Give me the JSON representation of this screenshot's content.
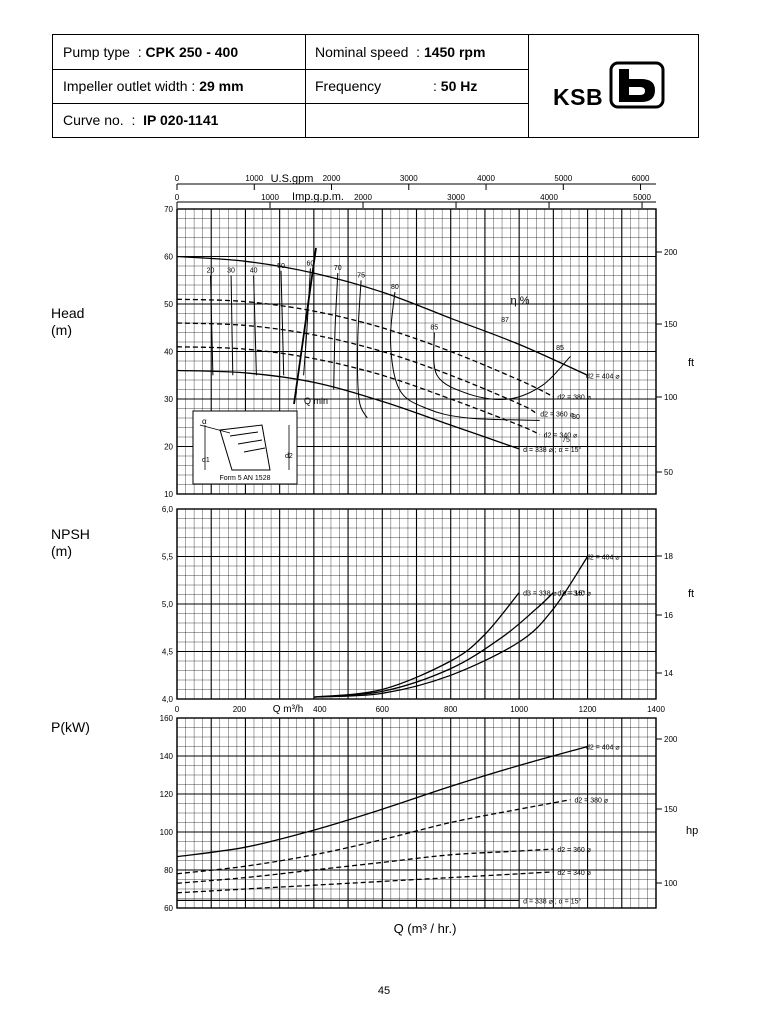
{
  "header": {
    "pump_type_label": "Pump type",
    "pump_type_value": "CPK 250 - 400",
    "impeller_label": "Impeller outlet width",
    "impeller_value": "29 mm",
    "curve_label": "Curve no.",
    "curve_value": "IP 020-1141",
    "speed_label": "Nominal speed",
    "speed_value": "1450 rpm",
    "frequency_label": "Frequency",
    "frequency_value": "50 Hz",
    "logo_text": "KSB"
  },
  "labels": {
    "head": "Head",
    "head_unit": "(m)",
    "npsh": "NPSH",
    "npsh_unit": "(m)",
    "power": "P(kW)",
    "ft1": "ft",
    "ft2": "ft",
    "hp": "hp",
    "x_axis": "Q (m³ / hr.)"
  },
  "page_number": "45",
  "chart_data": [
    {
      "type": "line",
      "xlabel": "Q m³/h",
      "ylabel": "Head (m)",
      "xlim": [
        0,
        1400
      ],
      "ylim": [
        10,
        70
      ],
      "y_ticks": [
        10,
        20,
        30,
        40,
        50,
        60,
        70
      ],
      "right_axis": {
        "unit": "ft",
        "ticks": [
          50,
          100,
          150,
          200
        ]
      },
      "top_axes": [
        {
          "label": "U.S.gpm",
          "ticks": [
            0,
            1000,
            2000,
            3000,
            4000,
            5000,
            6000
          ]
        },
        {
          "label": "Imp.g.p.m.",
          "ticks": [
            0,
            1000,
            2000,
            3000,
            4000,
            5000
          ]
        }
      ],
      "grid": true,
      "efficiency_label": "η %",
      "qmin_label": "Q min",
      "series": [
        {
          "name": "d2 = 404 ⌀",
          "style": "solid",
          "x": [
            0,
            200,
            400,
            600,
            800,
            1000,
            1200
          ],
          "y": [
            60,
            59,
            56.5,
            52.5,
            47,
            41.5,
            35
          ]
        },
        {
          "name": "d2 = 380 ⌀",
          "style": "dashed",
          "x": [
            0,
            200,
            400,
            600,
            800,
            1000,
            1100
          ],
          "y": [
            51,
            50.5,
            48.5,
            45,
            40,
            34,
            30.5
          ]
        },
        {
          "name": "d2 = 360 ⌀",
          "style": "dashed",
          "x": [
            0,
            200,
            400,
            600,
            800,
            1000,
            1050
          ],
          "y": [
            46,
            45.5,
            43.5,
            40,
            35,
            29,
            27
          ]
        },
        {
          "name": "d2 = 340 ⌀",
          "style": "dashed",
          "x": [
            0,
            200,
            400,
            600,
            800,
            1000,
            1060
          ],
          "y": [
            41,
            40.5,
            38.5,
            35,
            30,
            24.5,
            22.5
          ]
        },
        {
          "name": "d = 338 ⌀ ; α = 15°",
          "style": "solid",
          "x": [
            0,
            200,
            400,
            600,
            800,
            1000
          ],
          "y": [
            36,
            35.5,
            33.5,
            29.5,
            24.5,
            19.5
          ]
        }
      ],
      "efficiency_curves": [
        {
          "label": "20",
          "x": [
            98,
            105
          ],
          "y": [
            56,
            35
          ]
        },
        {
          "label": "30",
          "x": [
            158,
            163
          ],
          "y": [
            56,
            35
          ]
        },
        {
          "label": "40",
          "x": [
            224,
            232
          ],
          "y": [
            56,
            35
          ]
        },
        {
          "label": "50",
          "x": [
            304,
            312
          ],
          "y": [
            57,
            35
          ]
        },
        {
          "label": "60",
          "x": [
            390,
            380,
            370
          ],
          "y": [
            57.5,
            45,
            35
          ]
        },
        {
          "label": "70",
          "x": [
            470,
            462,
            458
          ],
          "y": [
            56.5,
            45,
            32
          ]
        },
        {
          "label": "75",
          "x": [
            538,
            528,
            532,
            556
          ],
          "y": [
            55,
            42,
            30,
            26
          ]
        },
        {
          "label": "80",
          "x": [
            637,
            624,
            650,
            730,
            850,
            1060
          ],
          "y": [
            52.5,
            42,
            32,
            28,
            26,
            25.5
          ]
        },
        {
          "label": "85",
          "x": [
            752,
            760,
            855,
            970,
            1070,
            1150
          ],
          "y": [
            44,
            35,
            31,
            30,
            33,
            39
          ]
        }
      ],
      "efficiency_labels_right": [
        "87",
        "85",
        "80",
        "75"
      ],
      "inset_drawing": {
        "labels": [
          "α",
          "d1",
          "d2",
          "Form 5  AN 1528"
        ]
      }
    },
    {
      "type": "line",
      "xlabel": "Q m³/h",
      "ylabel": "NPSH (m)",
      "xlim": [
        0,
        1400
      ],
      "ylim": [
        4.0,
        6.0
      ],
      "y_ticks": [
        "4,0",
        "4,5",
        "5,0",
        "5,5",
        "6,0"
      ],
      "x_ticks": [
        0,
        200,
        400,
        600,
        800,
        1000,
        1200,
        1400
      ],
      "right_axis": {
        "unit": "ft",
        "ticks": [
          14,
          16,
          18
        ]
      },
      "grid": true,
      "series": [
        {
          "name": "d2 = 404 ⌀",
          "x": [
            400,
            600,
            800,
            1000,
            1100,
            1200
          ],
          "y": [
            4.02,
            4.06,
            4.25,
            4.6,
            4.95,
            5.5
          ]
        },
        {
          "name": "d2 = 340 ⌀",
          "x": [
            400,
            600,
            800,
            950,
            1050,
            1100
          ],
          "y": [
            4.02,
            4.08,
            4.32,
            4.65,
            4.95,
            5.12
          ]
        },
        {
          "name": "d3 = 338 ⌀ ; α = 15°",
          "x": [
            400,
            600,
            800,
            900,
            1000
          ],
          "y": [
            4.02,
            4.1,
            4.4,
            4.68,
            5.12
          ]
        }
      ]
    },
    {
      "type": "line",
      "xlabel": "Q (m³ / hr.)",
      "ylabel": "P(kW)",
      "xlim": [
        0,
        1400
      ],
      "ylim": [
        60,
        160
      ],
      "y_ticks": [
        60,
        80,
        100,
        120,
        140,
        160
      ],
      "right_axis": {
        "unit": "hp",
        "ticks": [
          100,
          150,
          200
        ]
      },
      "grid": true,
      "series": [
        {
          "name": "d2 = 404 ⌀",
          "style": "solid",
          "x": [
            0,
            200,
            400,
            600,
            800,
            1000,
            1200
          ],
          "y": [
            87,
            92,
            101,
            112,
            124,
            135,
            145
          ]
        },
        {
          "name": "d2 = 380 ⌀",
          "style": "dashed",
          "x": [
            0,
            200,
            400,
            600,
            800,
            1000,
            1150
          ],
          "y": [
            78,
            82,
            88,
            96,
            105,
            112,
            117
          ]
        },
        {
          "name": "d2 = 360 ⌀",
          "style": "dashed",
          "x": [
            0,
            200,
            400,
            600,
            800,
            1000,
            1100
          ],
          "y": [
            73,
            76,
            80,
            84,
            88,
            90,
            91
          ]
        },
        {
          "name": "d2 = 340 ⌀",
          "style": "dashed",
          "x": [
            0,
            200,
            400,
            600,
            800,
            1000,
            1100
          ],
          "y": [
            68,
            70,
            72,
            74,
            76,
            78,
            79
          ]
        },
        {
          "name": "d = 338 ⌀ ; α = 15°",
          "style": "solid",
          "x": [
            0,
            200,
            400,
            600,
            800,
            1000
          ],
          "y": [
            64,
            64,
            64,
            64,
            64,
            64
          ]
        }
      ]
    }
  ]
}
